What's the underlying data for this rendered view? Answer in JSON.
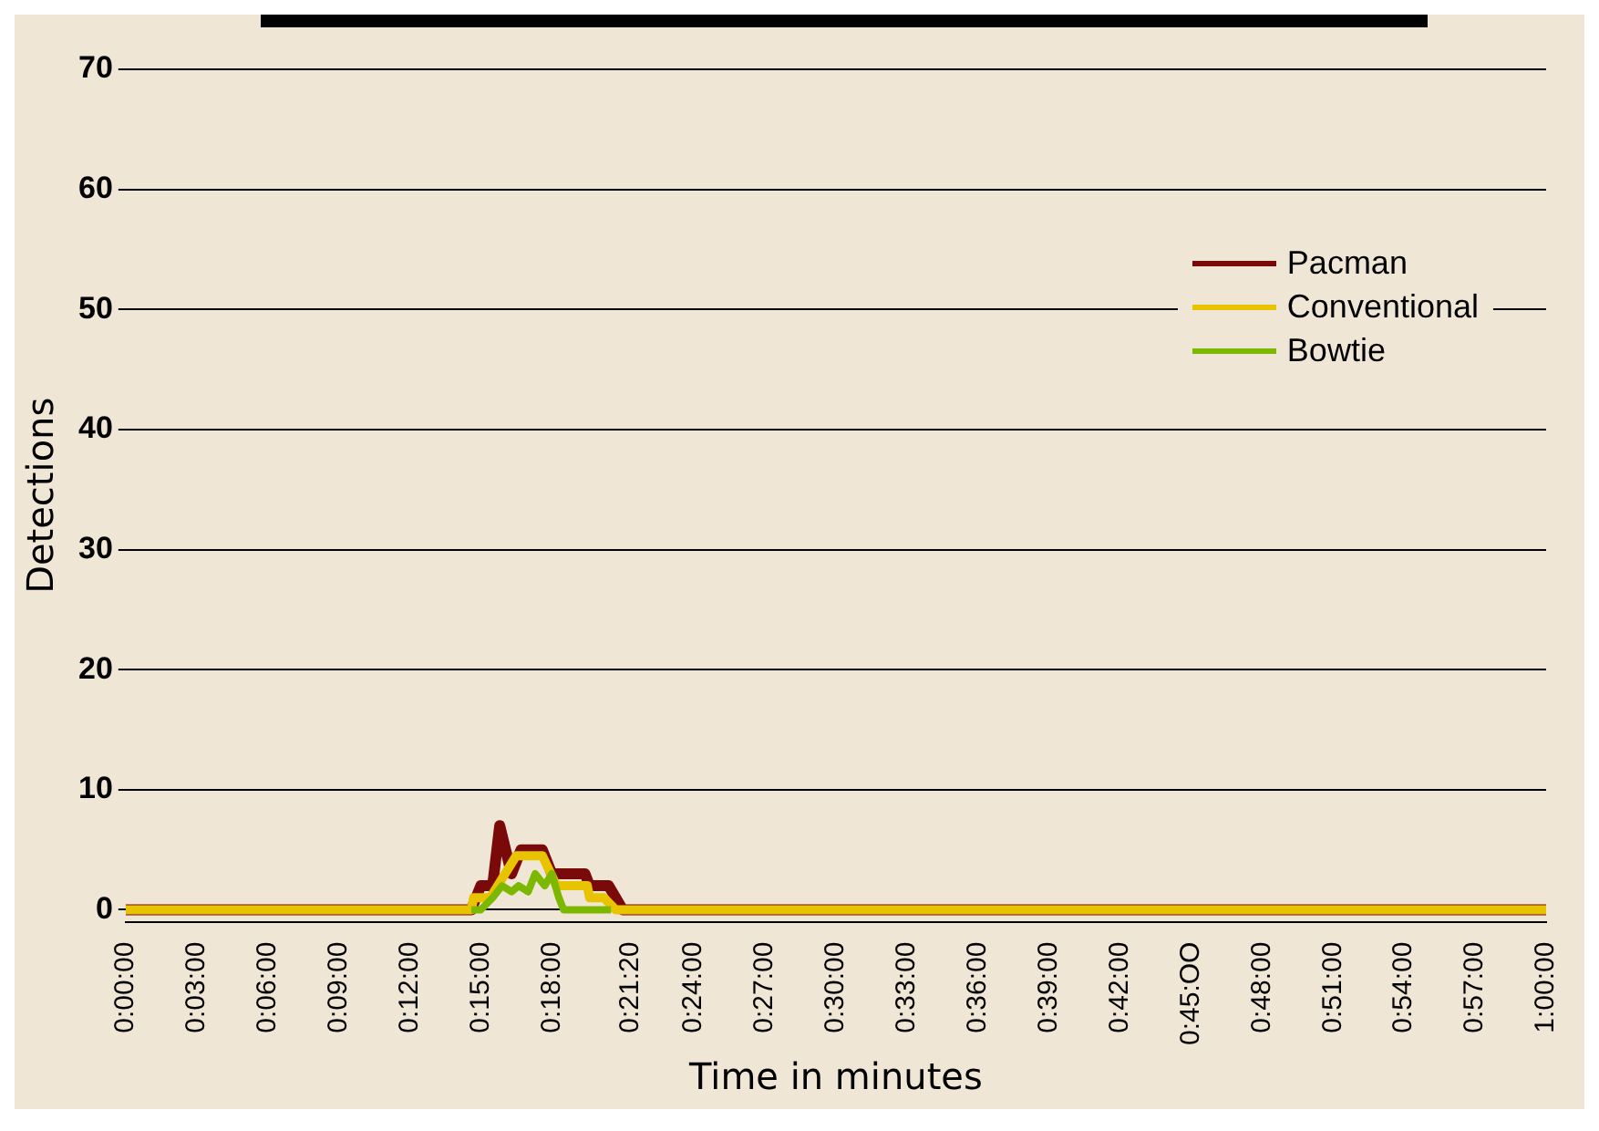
{
  "chart_data": {
    "type": "line",
    "xlabel": "Time in minutes",
    "ylabel": "Detections",
    "xlim": [
      0,
      60
    ],
    "ylim": [
      -1,
      70
    ],
    "xticks": [
      {
        "value": 0,
        "label": "0:00:00"
      },
      {
        "value": 3,
        "label": "0:03:00"
      },
      {
        "value": 6,
        "label": "0:06:00"
      },
      {
        "value": 9,
        "label": "0:09:00"
      },
      {
        "value": 12,
        "label": "0:12:00"
      },
      {
        "value": 15,
        "label": "0:15:00"
      },
      {
        "value": 18,
        "label": "0:18:00"
      },
      {
        "value": 21.3333,
        "label": "0:21:20"
      },
      {
        "value": 24,
        "label": "0:24:00"
      },
      {
        "value": 27,
        "label": "0:27:00"
      },
      {
        "value": 30,
        "label": "0:30:00"
      },
      {
        "value": 33,
        "label": "0:33:00"
      },
      {
        "value": 36,
        "label": "0:36:00"
      },
      {
        "value": 39,
        "label": "0:39:00"
      },
      {
        "value": 42,
        "label": "0:42:00"
      },
      {
        "value": 45,
        "label": "0:45:OO"
      },
      {
        "value": 48,
        "label": "0:48:00"
      },
      {
        "value": 51,
        "label": "0:51:00"
      },
      {
        "value": 54,
        "label": "0:54:00"
      },
      {
        "value": 57,
        "label": "0:57:00"
      },
      {
        "value": 60,
        "label": "1:00:00"
      }
    ],
    "yticks": [
      0,
      10,
      20,
      30,
      40,
      50,
      60,
      70
    ],
    "grid": "y",
    "legend": "top right",
    "marker": "none",
    "line_style": "solid",
    "series": [
      {
        "name": "Pacman",
        "color": "#7a0a0a",
        "x": [
          0,
          14.6,
          15.0,
          15.5,
          15.8,
          16.3,
          16.7,
          17.6,
          18.0,
          19.4,
          19.6,
          20.4,
          21.0,
          60
        ],
        "values": [
          0,
          0,
          2,
          2,
          7,
          3,
          5,
          5,
          3,
          3,
          2,
          2,
          0,
          0
        ]
      },
      {
        "name": "Conventional",
        "color": "#e8c400",
        "x": [
          0,
          14.6,
          14.7,
          15.4,
          16.5,
          17.6,
          18.2,
          19.5,
          19.6,
          20.2,
          20.7,
          60
        ],
        "values": [
          0,
          0,
          1,
          1,
          4.5,
          4.5,
          2,
          2,
          1,
          1,
          0,
          0
        ]
      },
      {
        "name": "Bowtie",
        "color": "#7db800",
        "x": [
          14.6,
          15.0,
          15.5,
          15.9,
          16.3,
          16.6,
          17.0,
          17.3,
          17.7,
          18.0,
          18.3,
          18.5,
          20.5
        ],
        "values": [
          0,
          0,
          1,
          2,
          1.5,
          2,
          1.5,
          3,
          2,
          3,
          1,
          0,
          0
        ]
      }
    ]
  }
}
